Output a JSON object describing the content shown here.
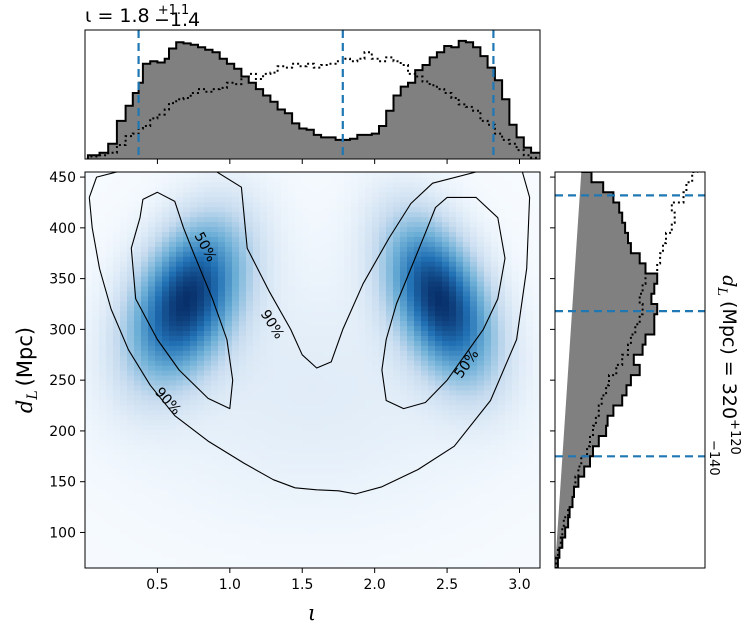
{
  "chart_data": [
    {
      "type": "histogram",
      "panel": "top-marginal",
      "title": "ι = 1.8",
      "title_sup": "+1.1",
      "title_sub": "−1.4",
      "xlim": [
        0.0,
        3.1416
      ],
      "bins_x": [
        0.02,
        0.1,
        0.16,
        0.22,
        0.28,
        0.33,
        0.37,
        0.4,
        0.45,
        0.5,
        0.55,
        0.58,
        0.63,
        0.68,
        0.73,
        0.78,
        0.83,
        0.88,
        0.93,
        0.98,
        1.03,
        1.08,
        1.13,
        1.18,
        1.23,
        1.28,
        1.33,
        1.38,
        1.43,
        1.48,
        1.53,
        1.58,
        1.63,
        1.68,
        1.73,
        1.78,
        1.83,
        1.88,
        1.93,
        1.98,
        2.03,
        2.08,
        2.13,
        2.18,
        2.23,
        2.28,
        2.33,
        2.38,
        2.43,
        2.48,
        2.53,
        2.58,
        2.63,
        2.68,
        2.73,
        2.78,
        2.83,
        2.88,
        2.93,
        2.98,
        3.03,
        3.08,
        3.14
      ],
      "filled_counts": [
        0.03,
        0.05,
        0.12,
        0.3,
        0.42,
        0.52,
        0.6,
        0.75,
        0.77,
        0.76,
        0.79,
        0.87,
        0.92,
        0.91,
        0.9,
        0.88,
        0.86,
        0.84,
        0.79,
        0.75,
        0.71,
        0.65,
        0.6,
        0.55,
        0.5,
        0.45,
        0.39,
        0.36,
        0.28,
        0.24,
        0.23,
        0.19,
        0.17,
        0.17,
        0.15,
        0.15,
        0.16,
        0.19,
        0.19,
        0.2,
        0.26,
        0.38,
        0.5,
        0.57,
        0.6,
        0.7,
        0.74,
        0.8,
        0.84,
        0.89,
        0.88,
        0.93,
        0.92,
        0.88,
        0.81,
        0.72,
        0.62,
        0.47,
        0.27,
        0.17,
        0.09,
        0.05
      ],
      "dotted_counts": [
        0.02,
        0.03,
        0.05,
        0.11,
        0.18,
        0.2,
        0.24,
        0.26,
        0.32,
        0.35,
        0.39,
        0.44,
        0.47,
        0.48,
        0.52,
        0.55,
        0.53,
        0.55,
        0.56,
        0.6,
        0.59,
        0.65,
        0.67,
        0.63,
        0.67,
        0.68,
        0.73,
        0.72,
        0.75,
        0.73,
        0.75,
        0.72,
        0.74,
        0.75,
        0.77,
        0.79,
        0.77,
        0.79,
        0.84,
        0.79,
        0.77,
        0.8,
        0.77,
        0.74,
        0.67,
        0.65,
        0.61,
        0.58,
        0.55,
        0.52,
        0.48,
        0.43,
        0.41,
        0.38,
        0.3,
        0.27,
        0.2,
        0.15,
        0.12,
        0.07,
        0.03,
        0.01
      ],
      "quantile_lines": [
        0.37,
        1.78,
        2.82
      ],
      "colors": {
        "filled": "#808080",
        "edge": "#000000",
        "quantile": "#1f77b4"
      }
    },
    {
      "type": "heatmap",
      "panel": "joint",
      "xlabel": "ι",
      "ylabel": "d",
      "ylabel_sub": "L",
      "ylabel_unit": "(Mpc)",
      "xlim": [
        0.0,
        3.1416
      ],
      "ylim": [
        65,
        455
      ],
      "xticks": [
        0.5,
        1.0,
        1.5,
        2.0,
        2.5,
        3.0
      ],
      "xtick_labels": [
        "0.5",
        "1.0",
        "1.5",
        "2.0",
        "2.5",
        "3.0"
      ],
      "yticks": [
        100,
        150,
        200,
        250,
        300,
        350,
        400,
        450
      ],
      "ytick_labels": [
        "100",
        "150",
        "200",
        "250",
        "300",
        "350",
        "400",
        "450"
      ],
      "density_modes": [
        {
          "x": 0.7,
          "y": 330,
          "sx": 0.28,
          "sy": 55,
          "rho": 0.4,
          "weight": 1.0
        },
        {
          "x": 2.45,
          "y": 330,
          "sx": 0.26,
          "sy": 55,
          "rho": -0.45,
          "weight": 1.0
        }
      ],
      "contour_labels": [
        "50%",
        "90%",
        "90%",
        "50%"
      ],
      "contour_90": [
        [
          0.03,
          430
        ],
        [
          0.05,
          400
        ],
        [
          0.1,
          360
        ],
        [
          0.18,
          320
        ],
        [
          0.3,
          280
        ],
        [
          0.45,
          245
        ],
        [
          0.62,
          215
        ],
        [
          0.85,
          190
        ],
        [
          1.1,
          168
        ],
        [
          1.3,
          152
        ],
        [
          1.45,
          144
        ],
        [
          1.6,
          142
        ],
        [
          1.75,
          141
        ],
        [
          1.87,
          138
        ],
        [
          2.05,
          145
        ],
        [
          2.3,
          162
        ],
        [
          2.55,
          185
        ],
        [
          2.8,
          230
        ],
        [
          2.98,
          290
        ],
        [
          3.05,
          360
        ],
        [
          3.07,
          430
        ],
        [
          3.02,
          455
        ]
      ],
      "contour_90_top_left": [
        [
          0.03,
          430
        ],
        [
          0.08,
          450
        ],
        [
          0.3,
          458
        ],
        [
          0.5,
          458
        ],
        [
          0.9,
          456
        ],
        [
          1.08,
          440
        ],
        [
          1.12,
          380
        ],
        [
          1.27,
          338
        ],
        [
          1.42,
          300
        ],
        [
          1.5,
          275
        ],
        [
          1.6,
          262
        ],
        [
          1.7,
          268
        ],
        [
          1.78,
          300
        ],
        [
          1.92,
          345
        ],
        [
          2.1,
          390
        ],
        [
          2.25,
          424
        ],
        [
          2.4,
          444
        ],
        [
          2.7,
          455
        ],
        [
          3.02,
          455
        ]
      ],
      "contour_50_left": [
        [
          0.38,
          410
        ],
        [
          0.32,
          380
        ],
        [
          0.35,
          330
        ],
        [
          0.5,
          290
        ],
        [
          0.65,
          260
        ],
        [
          0.85,
          232
        ],
        [
          1.0,
          222
        ],
        [
          1.02,
          250
        ],
        [
          0.98,
          290
        ],
        [
          0.88,
          330
        ],
        [
          0.75,
          375
        ],
        [
          0.68,
          400
        ],
        [
          0.62,
          426
        ],
        [
          0.5,
          435
        ],
        [
          0.4,
          428
        ]
      ],
      "contour_50_right": [
        [
          2.5,
          430
        ],
        [
          2.7,
          430
        ],
        [
          2.85,
          410
        ],
        [
          2.9,
          370
        ],
        [
          2.85,
          330
        ],
        [
          2.75,
          300
        ],
        [
          2.6,
          270
        ],
        [
          2.5,
          250
        ],
        [
          2.35,
          228
        ],
        [
          2.2,
          222
        ],
        [
          2.08,
          230
        ],
        [
          2.05,
          260
        ],
        [
          2.08,
          290
        ],
        [
          2.15,
          325
        ],
        [
          2.25,
          360
        ],
        [
          2.35,
          395
        ],
        [
          2.42,
          420
        ]
      ]
    },
    {
      "type": "histogram",
      "panel": "right-marginal",
      "orientation": "horizontal",
      "ylabel": "d",
      "ylabel_sub": "L",
      "ylabel_tail": "(Mpc) = 320",
      "ylabel_sup": "+120",
      "ylabel_sub2": "−140",
      "ylim": [
        65,
        455
      ],
      "bins_y": [
        65,
        75,
        85,
        95,
        105,
        115,
        125,
        135,
        145,
        155,
        165,
        175,
        185,
        195,
        205,
        215,
        225,
        235,
        245,
        255,
        265,
        275,
        285,
        295,
        305,
        315,
        325,
        335,
        345,
        355,
        365,
        375,
        385,
        395,
        405,
        415,
        425,
        435,
        445,
        455
      ],
      "filled_counts": [
        0.02,
        0.03,
        0.05,
        0.07,
        0.09,
        0.1,
        0.12,
        0.13,
        0.16,
        0.2,
        0.24,
        0.26,
        0.3,
        0.35,
        0.36,
        0.4,
        0.46,
        0.49,
        0.52,
        0.58,
        0.54,
        0.6,
        0.62,
        0.68,
        0.68,
        0.7,
        0.66,
        0.68,
        0.7,
        0.62,
        0.58,
        0.52,
        0.5,
        0.48,
        0.46,
        0.44,
        0.4,
        0.33,
        0.25,
        0.18
      ],
      "dotted_counts": [
        0.01,
        0.02,
        0.04,
        0.05,
        0.06,
        0.09,
        0.12,
        0.13,
        0.14,
        0.16,
        0.18,
        0.22,
        0.24,
        0.26,
        0.28,
        0.3,
        0.32,
        0.35,
        0.37,
        0.42,
        0.46,
        0.5,
        0.52,
        0.55,
        0.58,
        0.6,
        0.58,
        0.6,
        0.62,
        0.7,
        0.72,
        0.74,
        0.76,
        0.8,
        0.82,
        0.8,
        0.88,
        0.9,
        0.94,
        0.98
      ],
      "quantile_lines": [
        175,
        318,
        432
      ],
      "colors": {
        "filled": "#808080",
        "edge": "#000000",
        "quantile": "#1f77b4"
      }
    }
  ]
}
